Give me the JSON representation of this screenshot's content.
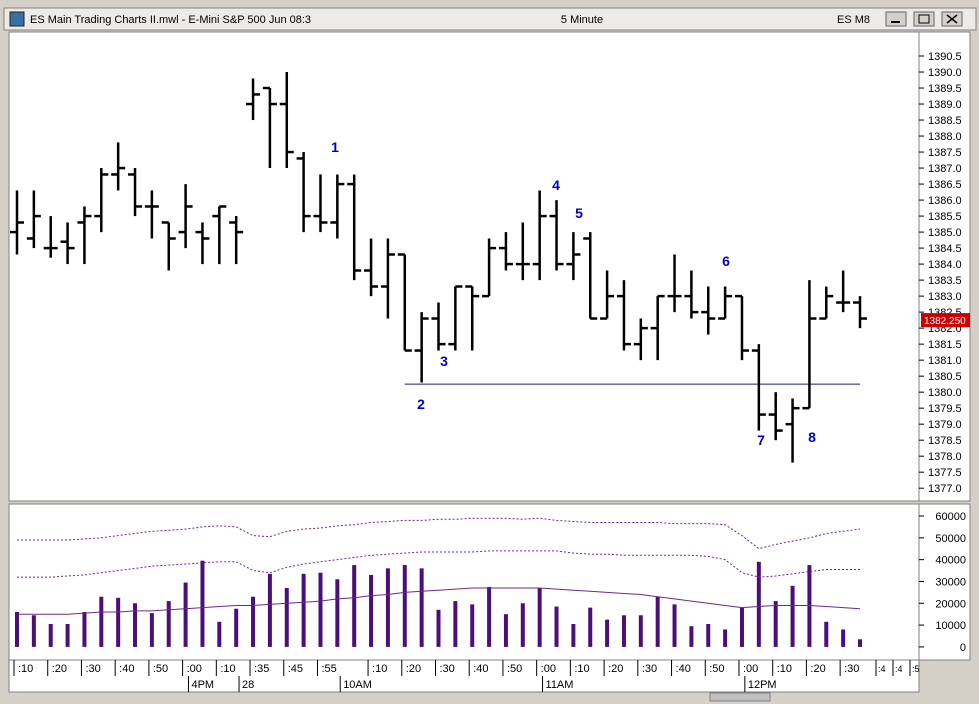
{
  "window": {
    "title": "ES Main Trading Charts II.mwl - E-Mini S&P 500 Jun 08:3",
    "interval": "5 Minute",
    "symbol": "ES M8"
  },
  "chart_data": [
    {
      "type": "ohlc",
      "color": "#000000",
      "categories": [
        ":10",
        null,
        ":20",
        null,
        ":30",
        null,
        ":40",
        null,
        ":50",
        null,
        ":00",
        null,
        ":10",
        null,
        ":35",
        null,
        ":45",
        null,
        ":55",
        null,
        null,
        ":10",
        null,
        ":20",
        null,
        ":30",
        null,
        ":40",
        null,
        ":50",
        null,
        ":00",
        null,
        ":10",
        null,
        ":20",
        null,
        ":30",
        null,
        ":40",
        null,
        ":50",
        null,
        ":00",
        null,
        ":10",
        null,
        ":20",
        null,
        ":30",
        null
      ],
      "session_labels": [
        null,
        null,
        null,
        null,
        null,
        null,
        null,
        null,
        null,
        null,
        null,
        "4PM",
        null,
        null,
        "28",
        null,
        null,
        null,
        null,
        null,
        "10AM",
        null,
        null,
        null,
        null,
        null,
        null,
        null,
        null,
        null,
        null,
        null,
        "11AM",
        null,
        null,
        null,
        null,
        null,
        null,
        null,
        null,
        null,
        null,
        null,
        "12PM",
        null,
        null,
        null,
        null,
        null,
        null
      ],
      "future_ticks": [
        ":4",
        ":4",
        ":5"
      ],
      "open": [
        1385.0,
        1384.8,
        1384.5,
        1384.7,
        1385.3,
        1385.5,
        1386.8,
        1386.8,
        1385.8,
        1385.3,
        1385.0,
        1385.0,
        1385.5,
        1385.3,
        1389.0,
        1389.5,
        1389.0,
        1387.3,
        1385.5,
        1385.3,
        1386.5,
        1383.8,
        1383.3,
        1384.3,
        1381.3,
        1382.3,
        1381.5,
        1383.3,
        1383.0,
        1384.5,
        1384.0,
        1384.0,
        1385.5,
        1384.0,
        1384.8,
        1382.3,
        1383.0,
        1381.5,
        1382.0,
        1383.0,
        1383.0,
        1382.5,
        1382.3,
        1383.0,
        1381.3,
        1379.3,
        1379.0,
        1379.5,
        1382.3,
        1382.8,
        1382.8
      ],
      "high": [
        1386.3,
        1386.3,
        1385.5,
        1385.3,
        1385.8,
        1387.0,
        1387.8,
        1387.0,
        1386.3,
        1385.3,
        1386.5,
        1385.3,
        1385.8,
        1385.5,
        1389.8,
        1389.5,
        1390.0,
        1387.5,
        1386.8,
        1386.8,
        1386.8,
        1384.8,
        1384.8,
        1384.3,
        1382.5,
        1382.8,
        1383.3,
        1383.3,
        1384.8,
        1385.0,
        1385.3,
        1386.3,
        1386.0,
        1385.0,
        1385.0,
        1383.8,
        1383.5,
        1382.3,
        1383.0,
        1384.3,
        1383.8,
        1383.3,
        1383.3,
        1383.0,
        1381.5,
        1380.0,
        1379.8,
        1383.5,
        1383.3,
        1383.8,
        1383.0
      ],
      "low": [
        1384.3,
        1384.5,
        1384.2,
        1384.0,
        1384.0,
        1385.0,
        1386.3,
        1385.5,
        1384.8,
        1383.8,
        1384.5,
        1384.0,
        1384.0,
        1384.0,
        1388.5,
        1387.0,
        1387.0,
        1385.0,
        1385.0,
        1384.8,
        1383.5,
        1383.0,
        1382.3,
        1381.3,
        1380.3,
        1381.3,
        1381.3,
        1381.3,
        1383.0,
        1383.8,
        1383.5,
        1383.5,
        1383.8,
        1383.5,
        1382.3,
        1382.3,
        1381.3,
        1381.0,
        1381.0,
        1382.5,
        1382.3,
        1381.8,
        1382.3,
        1381.0,
        1378.8,
        1378.5,
        1377.8,
        1379.5,
        1382.3,
        1382.5,
        1382.0
      ],
      "close": [
        1385.3,
        1385.5,
        1384.5,
        1384.5,
        1385.5,
        1386.8,
        1387.0,
        1385.8,
        1385.8,
        1384.8,
        1385.8,
        1384.8,
        1385.8,
        1385.0,
        1389.3,
        1389.0,
        1387.5,
        1385.5,
        1385.3,
        1386.5,
        1383.8,
        1383.3,
        1384.3,
        1381.3,
        1382.3,
        1381.5,
        1383.3,
        1383.0,
        1384.5,
        1384.0,
        1384.0,
        1385.5,
        1384.0,
        1384.3,
        1382.3,
        1383.0,
        1381.5,
        1382.0,
        1383.0,
        1383.0,
        1382.5,
        1382.3,
        1383.0,
        1381.3,
        1379.3,
        1378.8,
        1379.5,
        1382.3,
        1383.0,
        1382.8,
        1382.3
      ],
      "ylim": [
        1376.6,
        1391.25
      ],
      "yticks": [
        {
          "value": 1377.0,
          "label": "1377.0"
        },
        1377.5,
        {
          "value": 1378.0,
          "label": "1378.0"
        },
        1378.5,
        {
          "value": 1379.0,
          "label": "1379.0"
        },
        1379.5,
        {
          "value": 1380.0,
          "label": "1380.0"
        },
        1380.5,
        {
          "value": 1381.0,
          "label": "1381.0"
        },
        1381.5,
        {
          "value": 1382.0,
          "label": "1382.0"
        },
        1382.5,
        {
          "value": 1383.0,
          "label": "1383.0"
        },
        1383.5,
        {
          "value": 1384.0,
          "label": "1384.0"
        },
        1384.5,
        {
          "value": 1385.0,
          "label": "1385.0"
        },
        1385.5,
        {
          "value": 1386.0,
          "label": "1386.0"
        },
        1386.5,
        {
          "value": 1387.0,
          "label": "1387.0"
        },
        1387.5,
        {
          "value": 1388.0,
          "label": "1388.0"
        },
        1388.5,
        {
          "value": 1389.0,
          "label": "1389.0"
        },
        1389.5,
        {
          "value": 1390.0,
          "label": "1390.0"
        },
        1390.5
      ],
      "last_price": 1382.25,
      "last_price_label": "1382.250",
      "last_price_color": "#cc0000",
      "support_line": {
        "value": 1380.25,
        "color": "#1a1a6e"
      },
      "annotations": [
        "1",
        "2",
        "3",
        "4",
        "5",
        "6",
        "7",
        "8"
      ],
      "annotation_color": "#0000cc"
    },
    {
      "type": "bar",
      "color": "#4b0f7a",
      "values": [
        16000,
        14500,
        10500,
        10500,
        16000,
        23000,
        22500,
        20000,
        15500,
        21000,
        29500,
        39500,
        11500,
        17500,
        23000,
        33500,
        27000,
        33500,
        34000,
        31000,
        37500,
        33000,
        36000,
        37500,
        36000,
        17000,
        21000,
        19500,
        27500,
        15000,
        20000,
        27000,
        18500,
        10500,
        18000,
        12500,
        14500,
        14500,
        23000,
        19500,
        9500,
        10500,
        8000,
        18000,
        39000,
        21000,
        28000,
        37500,
        11500,
        8000,
        3500
      ],
      "lines": [
        {
          "style": "dashed",
          "color": "#6b2a8a",
          "values": [
            49000,
            49000,
            49000,
            49000,
            49500,
            50000,
            51000,
            52000,
            53000,
            53500,
            54000,
            55000,
            55500,
            55000,
            51000,
            50500,
            53000,
            54000,
            54500,
            55500,
            56000,
            57000,
            57500,
            58000,
            58000,
            58500,
            58500,
            59000,
            59000,
            59000,
            58500,
            59000,
            58000,
            57500,
            57000,
            57000,
            57000,
            57000,
            57000,
            56500,
            56500,
            56500,
            56000,
            51000,
            45000,
            47000,
            48500,
            50000,
            52000,
            53000,
            54000
          ]
        },
        {
          "style": "dashed",
          "color": "#6b2a8a",
          "values": [
            32000,
            32000,
            32000,
            32500,
            33000,
            34000,
            35000,
            36000,
            37000,
            37500,
            38000,
            38500,
            39000,
            39000,
            35000,
            34000,
            36500,
            38000,
            39000,
            40000,
            41000,
            42000,
            42500,
            43000,
            43500,
            43500,
            43500,
            43500,
            44000,
            44000,
            44000,
            44000,
            44000,
            43000,
            42500,
            42500,
            42000,
            42000,
            42000,
            42000,
            42000,
            41500,
            40000,
            34000,
            32000,
            32500,
            33500,
            34500,
            35500,
            35500,
            35500
          ]
        },
        {
          "style": "solid",
          "color": "#6b2a8a",
          "values": [
            15000,
            15000,
            15000,
            15000,
            15500,
            16000,
            16000,
            16500,
            16500,
            17000,
            17500,
            18000,
            18500,
            19000,
            19000,
            19500,
            20000,
            20500,
            21000,
            22000,
            22500,
            23500,
            24000,
            25000,
            25500,
            26000,
            26500,
            27000,
            27000,
            27000,
            27000,
            27000,
            26500,
            26000,
            25500,
            25000,
            24500,
            24000,
            23000,
            22000,
            21000,
            20000,
            19000,
            18000,
            18500,
            19000,
            19000,
            19000,
            18500,
            18000,
            17500
          ]
        }
      ],
      "ylim": [
        -6000,
        65500
      ],
      "yticks": [
        0,
        10000,
        20000,
        30000,
        40000,
        50000,
        60000
      ]
    }
  ]
}
